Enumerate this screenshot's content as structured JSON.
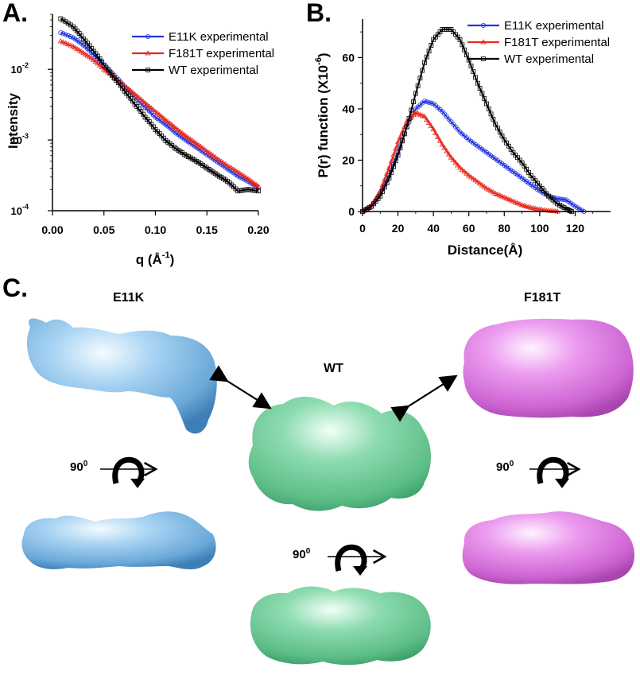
{
  "panels": {
    "a": "A.",
    "b": "B.",
    "c": "C."
  },
  "chart_data": [
    {
      "type": "line",
      "panel": "A.",
      "xlabel": "q (Å",
      "xlabel_sup": "-1",
      "xlabel_end": ")",
      "ylabel": "Intensity",
      "xlim": [
        0.0,
        0.2
      ],
      "ylim": [
        0.0001,
        0.06
      ],
      "yscale": "log",
      "x_ticks": [
        "0.00",
        "0.05",
        "0.10",
        "0.15",
        "0.20"
      ],
      "y_ticks": [
        {
          "base": "10",
          "exp": "-2",
          "value": 0.01
        },
        {
          "base": "10",
          "exp": "-3",
          "value": 0.001
        },
        {
          "base": "10",
          "exp": "-4",
          "value": 0.0001
        }
      ],
      "legend_position": "top-right",
      "series": [
        {
          "name": "E11K experimental",
          "color": "#2236e6",
          "marker": "circle",
          "x": [
            0.008,
            0.02,
            0.03,
            0.04,
            0.05,
            0.06,
            0.07,
            0.08,
            0.09,
            0.1,
            0.11,
            0.12,
            0.13,
            0.14,
            0.15,
            0.16,
            0.17,
            0.18,
            0.19,
            0.2
          ],
          "y": [
            0.033,
            0.028,
            0.022,
            0.016,
            0.0115,
            0.0082,
            0.0057,
            0.004,
            0.0029,
            0.0021,
            0.00165,
            0.00125,
            0.00098,
            0.00078,
            0.00062,
            0.00049,
            0.00039,
            0.00031,
            0.00026,
            0.00021
          ]
        },
        {
          "name": "F181T experimental",
          "color": "#e8281e",
          "marker": "triangle",
          "x": [
            0.008,
            0.02,
            0.03,
            0.04,
            0.05,
            0.06,
            0.07,
            0.08,
            0.09,
            0.1,
            0.11,
            0.12,
            0.13,
            0.14,
            0.15,
            0.16,
            0.17,
            0.18,
            0.19,
            0.2
          ],
          "y": [
            0.025,
            0.021,
            0.017,
            0.0135,
            0.01,
            0.0076,
            0.0058,
            0.0044,
            0.0033,
            0.0025,
            0.0019,
            0.00145,
            0.00112,
            0.00088,
            0.00069,
            0.00054,
            0.00043,
            0.00035,
            0.00028,
            0.00022
          ]
        },
        {
          "name": "WT experimental",
          "color": "#000000",
          "marker": "square",
          "x": [
            0.008,
            0.02,
            0.03,
            0.04,
            0.05,
            0.06,
            0.07,
            0.08,
            0.09,
            0.1,
            0.11,
            0.12,
            0.13,
            0.14,
            0.15,
            0.16,
            0.17,
            0.18,
            0.19,
            0.2
          ],
          "y": [
            0.052,
            0.04,
            0.027,
            0.018,
            0.0115,
            0.0075,
            0.0049,
            0.0032,
            0.0021,
            0.0014,
            0.00098,
            0.00075,
            0.0006,
            0.0005,
            0.0004,
            0.00032,
            0.00026,
            0.00019,
            0.0002,
            0.00019
          ]
        }
      ]
    },
    {
      "type": "line",
      "panel": "B.",
      "xlabel": "Distance(Å)",
      "ylabel": "P(r) function (X10",
      "ylabel_sup": "-6",
      "ylabel_end": ")",
      "xlim": [
        0,
        140
      ],
      "ylim": [
        0,
        75
      ],
      "x_ticks": [
        0,
        20,
        40,
        60,
        80,
        100,
        120
      ],
      "y_ticks": [
        0,
        20,
        40,
        60
      ],
      "legend_position": "top-right",
      "series": [
        {
          "name": "E11K experimental",
          "color": "#2236e6",
          "marker": "circle",
          "x": [
            0,
            5,
            10,
            15,
            20,
            25,
            30,
            35,
            40,
            45,
            50,
            55,
            60,
            65,
            70,
            75,
            80,
            85,
            90,
            95,
            100,
            105,
            110,
            115,
            120,
            125
          ],
          "y": [
            0,
            2,
            7,
            14,
            23,
            33,
            40,
            43,
            42,
            39,
            35,
            31,
            28,
            25.5,
            23,
            20.5,
            18,
            15.5,
            13,
            10.5,
            8,
            6,
            5,
            4.5,
            2,
            0
          ]
        },
        {
          "name": "F181T experimental",
          "color": "#e8281e",
          "marker": "triangle",
          "x": [
            0,
            5,
            10,
            15,
            20,
            25,
            30,
            35,
            40,
            45,
            50,
            55,
            60,
            65,
            70,
            75,
            80,
            85,
            90,
            95,
            100,
            105,
            110
          ],
          "y": [
            0,
            2,
            8,
            17,
            27,
            35,
            38.5,
            37,
            32,
            26,
            21,
            17,
            14,
            11.5,
            9,
            7,
            5.5,
            4,
            2.5,
            1.5,
            0.8,
            0.3,
            0
          ]
        },
        {
          "name": "WT experimental",
          "color": "#000000",
          "marker": "square",
          "x": [
            0,
            5,
            10,
            15,
            20,
            25,
            30,
            35,
            40,
            45,
            50,
            55,
            60,
            65,
            70,
            75,
            80,
            85,
            90,
            95,
            100,
            105,
            110,
            115,
            118
          ],
          "y": [
            0,
            2,
            6,
            13,
            22,
            33,
            46,
            58,
            67,
            71,
            71,
            67,
            59,
            50,
            42,
            34,
            28,
            23,
            19,
            14,
            10,
            6,
            3,
            1,
            0
          ]
        }
      ]
    }
  ],
  "panel_c": {
    "labels": {
      "e11k": "E11K",
      "wt": "WT",
      "f181t": "F181T"
    },
    "rotation_number": "90",
    "rotation_sup": "0",
    "colors": {
      "e11k": "#8ec3ea",
      "wt": "#74cf9d",
      "f181t": "#e282e6"
    }
  }
}
